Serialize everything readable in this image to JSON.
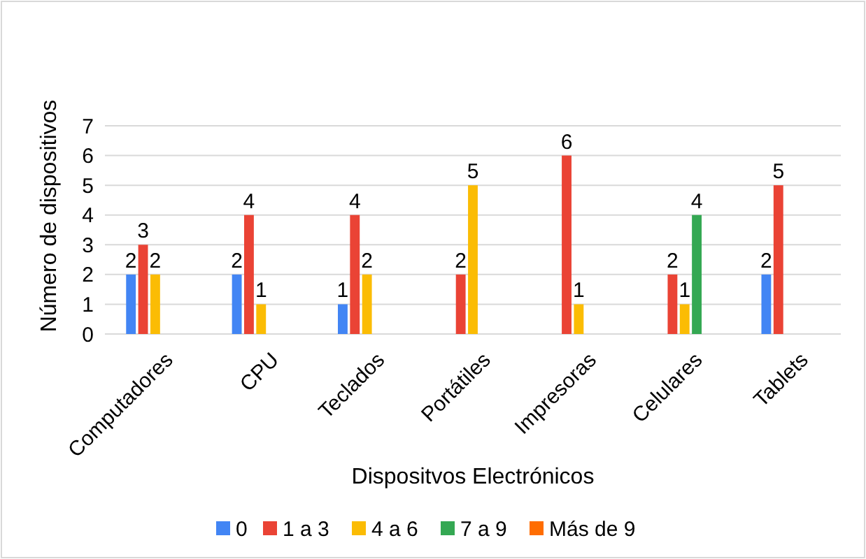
{
  "chart_data": {
    "type": "bar",
    "xlabel": "Dispositvos Electrónicos",
    "ylabel": "Número de dispositivos",
    "categories": [
      "Computadores",
      "CPU",
      "Teclados",
      "Portátiles",
      "Impresoras",
      "Celulares",
      "Tablets"
    ],
    "series": [
      {
        "name": "0",
        "color": "#4285f4",
        "values": [
          2,
          2,
          1,
          null,
          null,
          null,
          2
        ]
      },
      {
        "name": "1 a 3",
        "color": "#ea4335",
        "values": [
          3,
          4,
          4,
          2,
          6,
          2,
          5
        ]
      },
      {
        "name": "4 a 6",
        "color": "#fbbc04",
        "values": [
          2,
          1,
          2,
          5,
          1,
          1,
          null
        ]
      },
      {
        "name": "7 a 9",
        "color": "#34a853",
        "values": [
          null,
          null,
          null,
          null,
          null,
          4,
          null
        ]
      },
      {
        "name": "Más de 9",
        "color": "#ff6d01",
        "values": [
          null,
          null,
          null,
          null,
          null,
          null,
          null
        ]
      }
    ],
    "ylim": [
      0,
      7
    ],
    "yticks": [
      0,
      1,
      2,
      3,
      4,
      5,
      6,
      7
    ],
    "grid": "y",
    "data_labels": true,
    "legend": "bottom"
  }
}
